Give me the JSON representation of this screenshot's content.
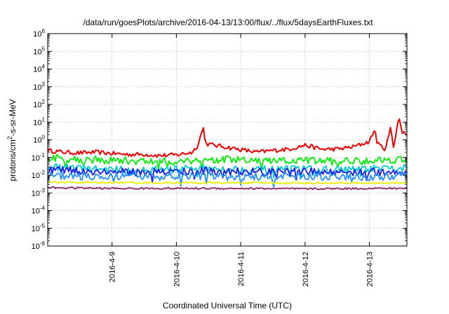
{
  "chart_data": {
    "type": "line",
    "title": "/data/run/goesPlots/archive/2016-04-13/13:00/flux/../flux/5daysEarthFluxes.txt",
    "xlabel": "Coordinated Universal Time (UTC)",
    "ylabel_main": "protons/cm",
    "ylabel_sup": "2",
    "ylabel_tail": "-s-sr-MeV",
    "yscale": "log",
    "ylim": [
      1e-06,
      1000000.0
    ],
    "y_ticks": [
      {
        "base": "10",
        "exp": "-6"
      },
      {
        "base": "10",
        "exp": "-5"
      },
      {
        "base": "10",
        "exp": "-4"
      },
      {
        "base": "10",
        "exp": "-3"
      },
      {
        "base": "10",
        "exp": "-2"
      },
      {
        "base": "10",
        "exp": "-1"
      },
      {
        "base": "10",
        "exp": "0"
      },
      {
        "base": "10",
        "exp": "1"
      },
      {
        "base": "10",
        "exp": "2"
      },
      {
        "base": "10",
        "exp": "3"
      },
      {
        "base": "10",
        "exp": "4"
      },
      {
        "base": "10",
        "exp": "5"
      },
      {
        "base": "10",
        "exp": "6"
      }
    ],
    "xlim": [
      "2016-04-08 00:00",
      "2016-04-13 14:00"
    ],
    "x_ticks": [
      "2016-4-9",
      "2016-4-10",
      "2016-4-11",
      "2016-4-12",
      "2016-4-13"
    ],
    "grid": true,
    "series": [
      {
        "color": "#ee0000",
        "points": [
          [
            "2016-04-08 00:00",
            0.25
          ],
          [
            "2016-04-08 06:00",
            0.2
          ],
          [
            "2016-04-08 12:00",
            0.18
          ],
          [
            "2016-04-08 18:00",
            0.2
          ],
          [
            "2016-04-09 00:00",
            0.17
          ],
          [
            "2016-04-09 06:00",
            0.15
          ],
          [
            "2016-04-09 12:00",
            0.15
          ],
          [
            "2016-04-09 18:00",
            0.13
          ],
          [
            "2016-04-10 00:00",
            0.14
          ],
          [
            "2016-04-10 06:00",
            0.2
          ],
          [
            "2016-04-10 08:00",
            0.5
          ],
          [
            "2016-04-10 10:00",
            5
          ],
          [
            "2016-04-10 11:00",
            0.6
          ],
          [
            "2016-04-10 14:00",
            0.5
          ],
          [
            "2016-04-10 18:00",
            0.4
          ],
          [
            "2016-04-11 00:00",
            0.28
          ],
          [
            "2016-04-11 06:00",
            0.2
          ],
          [
            "2016-04-11 12:00",
            0.25
          ],
          [
            "2016-04-11 18:00",
            0.3
          ],
          [
            "2016-04-12 00:00",
            0.5
          ],
          [
            "2016-04-12 06:00",
            0.3
          ],
          [
            "2016-04-12 12:00",
            0.3
          ],
          [
            "2016-04-12 18:00",
            0.4
          ],
          [
            "2016-04-13 00:00",
            0.8
          ],
          [
            "2016-04-13 02:00",
            4
          ],
          [
            "2016-04-13 03:00",
            0.6
          ],
          [
            "2016-04-13 06:00",
            0.3
          ],
          [
            "2016-04-13 08:00",
            5
          ],
          [
            "2016-04-13 09:00",
            0.4
          ],
          [
            "2016-04-13 11:00",
            20
          ],
          [
            "2016-04-13 12:00",
            3
          ],
          [
            "2016-04-13 14:00",
            2
          ]
        ]
      },
      {
        "color": "#00ee00",
        "points": [
          [
            "2016-04-08 00:00",
            0.1
          ],
          [
            "2016-04-08 12:00",
            0.08
          ],
          [
            "2016-04-09 00:00",
            0.07
          ],
          [
            "2016-04-09 12:00",
            0.06
          ],
          [
            "2016-04-10 00:00",
            0.06
          ],
          [
            "2016-04-10 12:00",
            0.08
          ],
          [
            "2016-04-11 00:00",
            0.07
          ],
          [
            "2016-04-11 12:00",
            0.06
          ],
          [
            "2016-04-12 00:00",
            0.07
          ],
          [
            "2016-04-12 12:00",
            0.06
          ],
          [
            "2016-04-13 00:00",
            0.07
          ],
          [
            "2016-04-13 14:00",
            0.08
          ]
        ]
      },
      {
        "color": "#00cccc",
        "points": [
          [
            "2016-04-08 00:00",
            0.03
          ],
          [
            "2016-04-08 12:00",
            0.025
          ],
          [
            "2016-04-09 00:00",
            0.02
          ],
          [
            "2016-04-09 12:00",
            0.02
          ],
          [
            "2016-04-10 00:00",
            0.022
          ],
          [
            "2016-04-10 12:00",
            0.025
          ],
          [
            "2016-04-11 00:00",
            0.022
          ],
          [
            "2016-04-11 12:00",
            0.02
          ],
          [
            "2016-04-12 00:00",
            0.022
          ],
          [
            "2016-04-12 12:00",
            0.02
          ],
          [
            "2016-04-13 00:00",
            0.022
          ],
          [
            "2016-04-13 14:00",
            0.025
          ]
        ]
      },
      {
        "color": "#1a1aee",
        "points": [
          [
            "2016-04-08 00:00",
            0.02
          ],
          [
            "2016-04-08 12:00",
            0.018
          ],
          [
            "2016-04-09 00:00",
            0.015
          ],
          [
            "2016-04-09 12:00",
            0.015
          ],
          [
            "2016-04-10 00:00",
            0.016
          ],
          [
            "2016-04-10 12:00",
            0.018
          ],
          [
            "2016-04-11 00:00",
            0.016
          ],
          [
            "2016-04-11 12:00",
            0.015
          ],
          [
            "2016-04-12 00:00",
            0.016
          ],
          [
            "2016-04-12 12:00",
            0.015
          ],
          [
            "2016-04-13 00:00",
            0.015
          ],
          [
            "2016-04-13 14:00",
            0.016
          ]
        ]
      },
      {
        "color": "#2090ff",
        "points": [
          [
            "2016-04-08 00:00",
            0.01
          ],
          [
            "2016-04-08 12:00",
            0.009
          ],
          [
            "2016-04-09 00:00",
            0.008
          ],
          [
            "2016-04-09 12:00",
            0.008
          ],
          [
            "2016-04-10 00:00",
            0.009
          ],
          [
            "2016-04-10 12:00",
            0.009
          ],
          [
            "2016-04-11 00:00",
            0.008
          ],
          [
            "2016-04-11 12:00",
            0.008
          ],
          [
            "2016-04-12 00:00",
            0.009
          ],
          [
            "2016-04-12 12:00",
            0.008
          ],
          [
            "2016-04-13 00:00",
            0.008
          ],
          [
            "2016-04-13 14:00",
            0.009
          ]
        ]
      },
      {
        "color": "#eeee00",
        "points": [
          [
            "2016-04-08 00:00",
            0.004
          ],
          [
            "2016-04-09 00:00",
            0.0038
          ],
          [
            "2016-04-10 00:00",
            0.0037
          ],
          [
            "2016-04-11 00:00",
            0.0037
          ],
          [
            "2016-04-12 00:00",
            0.0036
          ],
          [
            "2016-04-13 00:00",
            0.0036
          ],
          [
            "2016-04-13 14:00",
            0.0037
          ]
        ]
      },
      {
        "color": "#8b2060",
        "points": [
          [
            "2016-04-08 00:00",
            0.002
          ],
          [
            "2016-04-09 00:00",
            0.0018
          ],
          [
            "2016-04-10 00:00",
            0.0018
          ],
          [
            "2016-04-11 00:00",
            0.0018
          ],
          [
            "2016-04-12 00:00",
            0.0017
          ],
          [
            "2016-04-13 00:00",
            0.0018
          ],
          [
            "2016-04-13 14:00",
            0.0018
          ]
        ]
      }
    ]
  }
}
